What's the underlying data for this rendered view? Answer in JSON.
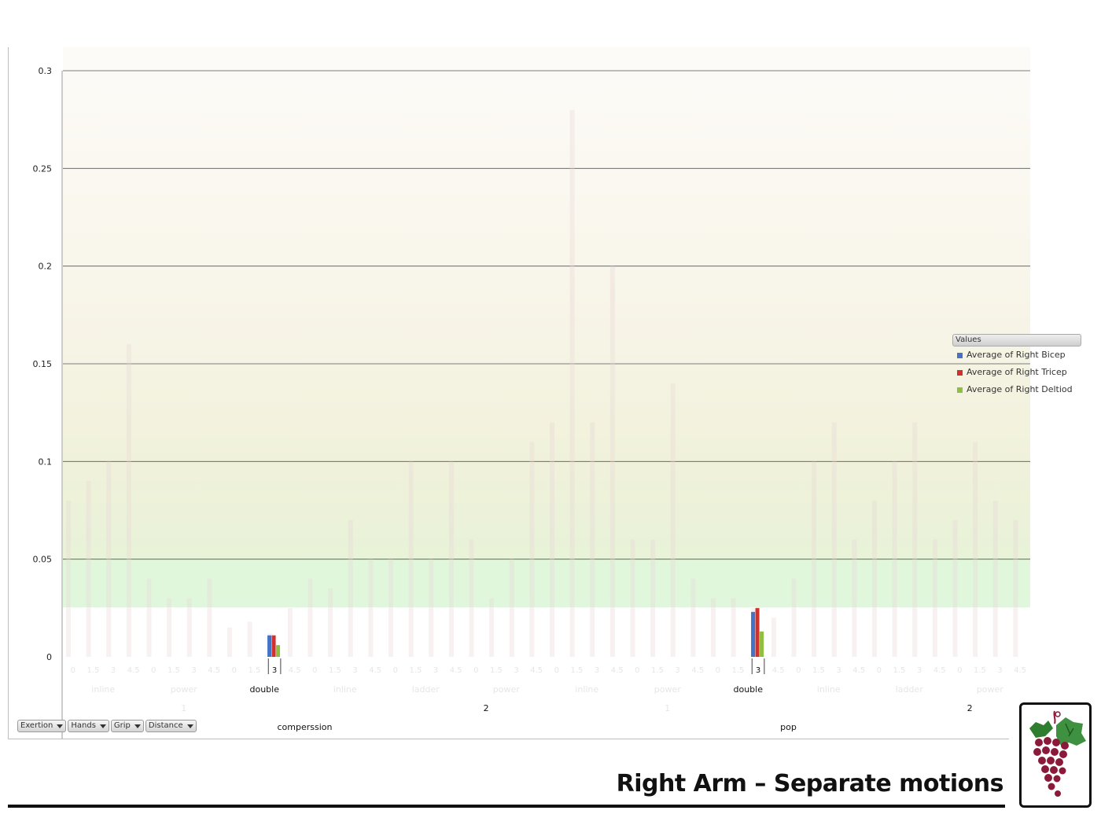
{
  "slide_title": "Right Arm – Separate motions",
  "legend": {
    "header": "Values",
    "items": [
      {
        "label": "Average of Right Bicep",
        "color": "#4472c4"
      },
      {
        "label": "Average of Right Tricep",
        "color": "#d0312d"
      },
      {
        "label": "Average of Right Deltiod",
        "color": "#8fbf3f"
      }
    ]
  },
  "field_buttons": [
    "Exertion",
    "Hands",
    "Grip",
    "Distance"
  ],
  "logo": {
    "icon": "grape-cluster-icon"
  },
  "chart_data": {
    "type": "bar",
    "ylim": [
      0,
      0.3
    ],
    "yticks": [
      "0",
      "0.05",
      "0.1",
      "0.15",
      "0.2",
      "0.25",
      "0.3"
    ],
    "grid": true,
    "legend_position": "right",
    "category_levels": [
      {
        "level": "Distance",
        "labels": [
          "0",
          "1.5",
          "3",
          "4.5"
        ]
      },
      {
        "level": "Grip",
        "groups": [
          [
            "inline",
            "power",
            "double",
            "inline",
            "ladder",
            "power"
          ],
          [
            "inline",
            "power",
            "double",
            "inline",
            "ladder",
            "power"
          ]
        ]
      },
      {
        "level": "Hands",
        "groups": [
          [
            "1",
            "2"
          ],
          [
            "1",
            "2"
          ]
        ]
      },
      {
        "level": "Exertion",
        "labels": [
          "comperssion",
          "pop"
        ]
      }
    ],
    "visible_categories": [
      {
        "exertion": "comperssion",
        "hands": "2",
        "grip": "double",
        "distance": "3"
      },
      {
        "exertion": "pop",
        "hands": "2",
        "grip": "double",
        "distance": "3"
      }
    ],
    "series": [
      {
        "name": "Average of Right Bicep",
        "values": [
          0.011,
          0.023
        ]
      },
      {
        "name": "Average of Right Tricep",
        "values": [
          0.011,
          0.025
        ]
      },
      {
        "name": "Average of Right Deltiod",
        "values": [
          0.006,
          0.013
        ]
      }
    ]
  }
}
